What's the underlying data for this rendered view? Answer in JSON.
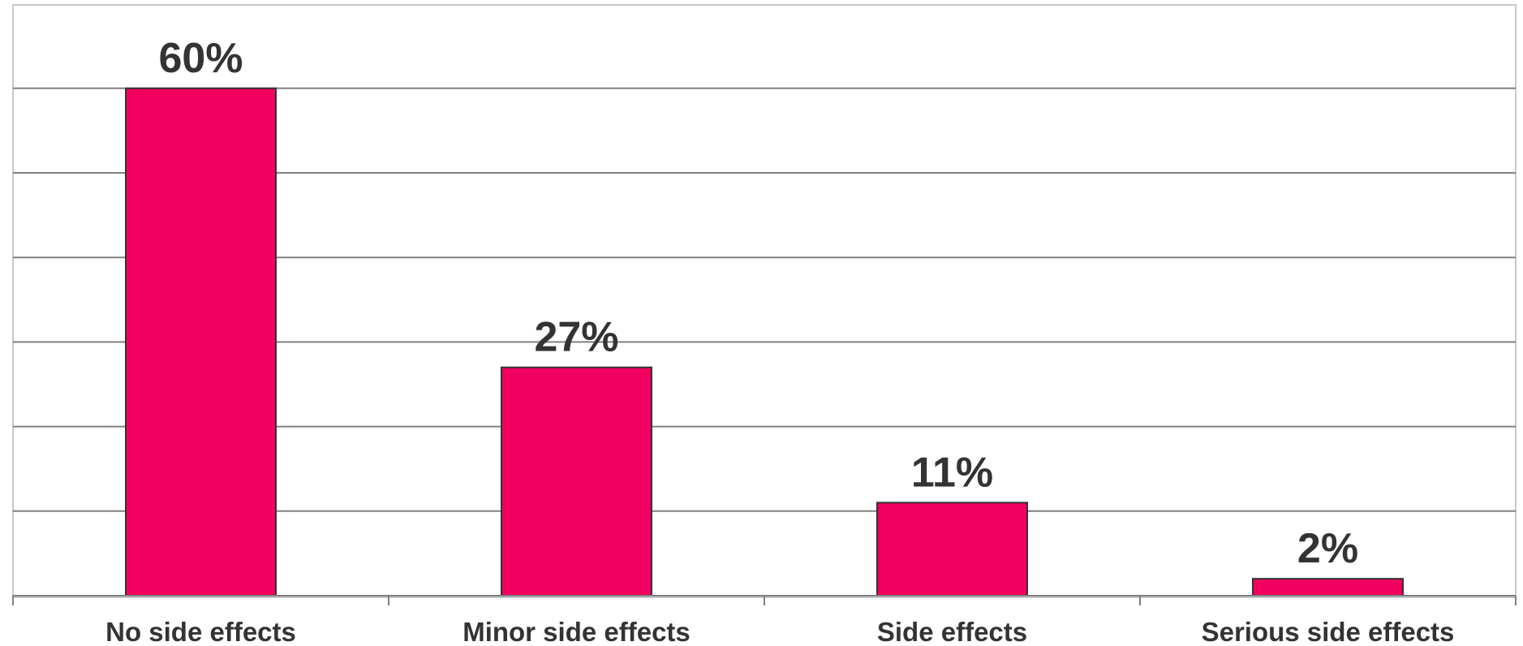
{
  "chart_data": {
    "type": "bar",
    "title": "",
    "xlabel": "",
    "ylabel": "",
    "categories": [
      "No side effects",
      "Minor side effects",
      "Side effects",
      "Serious side effects"
    ],
    "values": [
      60,
      27,
      11,
      2
    ],
    "value_labels": [
      "60%",
      "27%",
      "11%",
      "2%"
    ],
    "ylim": [
      0,
      70
    ],
    "ytick_interval": 10,
    "grid": true,
    "legend": "none",
    "bar_color": "#F20060"
  }
}
